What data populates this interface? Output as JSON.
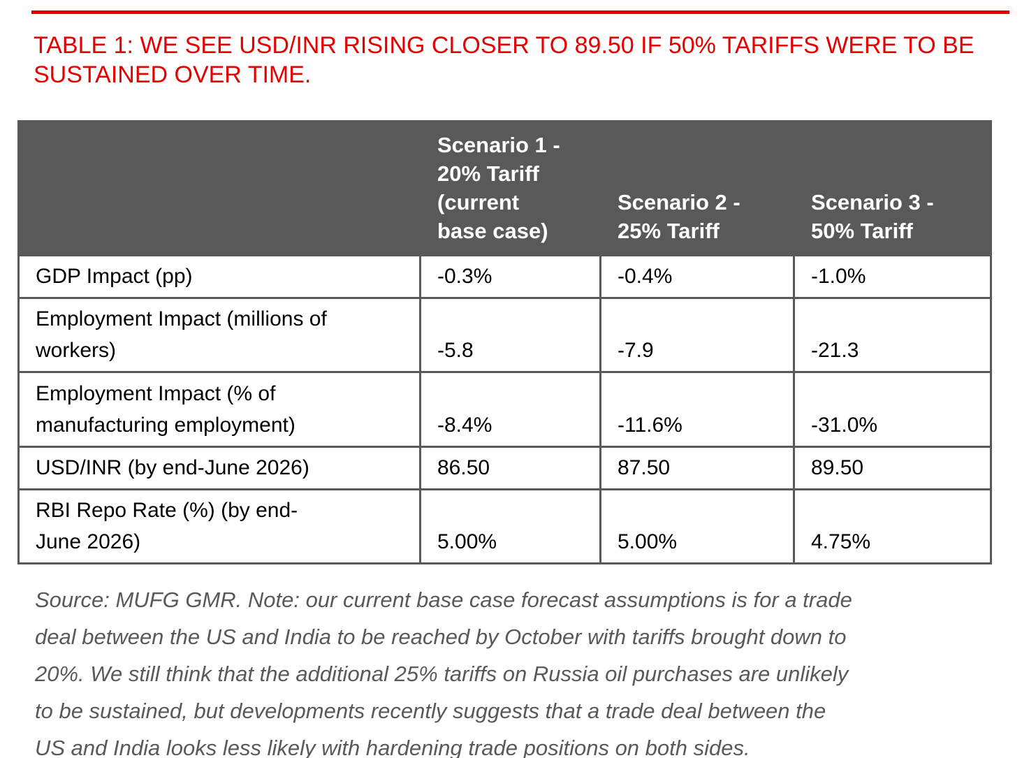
{
  "colors": {
    "accent_red": "#e60000",
    "header_bg": "#595959",
    "border": "#595959",
    "note_text": "#595959"
  },
  "title": "TABLE 1: WE SEE USD/INR RISING CLOSER TO 89.50 IF 50% TARIFFS WERE TO BE SUSTAINED OVER TIME.",
  "table": {
    "columns": [
      "",
      "Scenario 1 -\n20% Tariff\n(current\nbase case)",
      "Scenario 2 -\n25% Tariff",
      "Scenario 3 -\n50% Tariff"
    ],
    "rows": [
      {
        "label": "GDP Impact (pp)",
        "values": [
          "-0.3%",
          "-0.4%",
          "-1.0%"
        ]
      },
      {
        "label": "Employment Impact (millions of\nworkers)",
        "values": [
          "-5.8",
          "-7.9",
          "-21.3"
        ]
      },
      {
        "label": "Employment Impact (% of\nmanufacturing employment)",
        "values": [
          "-8.4%",
          "-11.6%",
          "-31.0%"
        ]
      },
      {
        "label": "USD/INR (by end-June 2026)",
        "values": [
          "86.50",
          "87.50",
          "89.50"
        ]
      },
      {
        "label": "RBI Repo Rate (%) (by end-\nJune 2026)",
        "values": [
          "5.00%",
          "5.00%",
          "4.75%"
        ]
      }
    ]
  },
  "source_note": "Source: MUFG GMR. Note: our current base case forecast assumptions is for a trade\ndeal between the US and India to be reached by October with tariffs brought down to\n20%. We still think that the additional 25% tariffs on Russia oil purchases are unlikely\nto be sustained, but developments recently suggests that a trade deal between the\nUS and India looks less likely with hardening trade positions on both sides."
}
